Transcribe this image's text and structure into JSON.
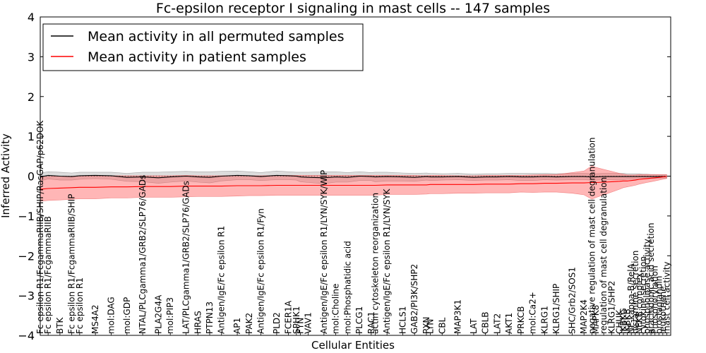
{
  "chart_data": {
    "type": "line",
    "title": "Fc-epsilon receptor I signaling in mast cells -- 147 samples",
    "xlabel": "Cellular Entities",
    "ylabel": "Inferred Activity",
    "ylim": [
      -4,
      4
    ],
    "yticks": [
      "4",
      "3",
      "2",
      "1",
      "0",
      "−1",
      "−2",
      "−3",
      "−4"
    ],
    "legend": {
      "placement": "top-left",
      "entries": [
        {
          "label": "Mean activity in all permuted samples",
          "color": "#000000"
        },
        {
          "label": "Mean activity in patient samples",
          "color": "#ff0000"
        }
      ]
    },
    "categories": [
      "Fc epsilon R1/FcgammaRIIB/SHIP/RasGAP/p62DOK",
      "Fc epsilon R1/FcgammaRIIB",
      "BTK",
      "Fc epsilon R1/FcgammaRIIB/SHIP",
      "Fc epsilon R1",
      "MS4A2",
      "mol:DAG",
      "mol:GDP",
      "NTAL/PLCgamma1/GRB2/SLP76/GADs",
      "PLA2G4A",
      "mol:PIP3",
      "LAT/PLCgamma1/GRB2/SLP76/GADs",
      "HRAS",
      "PTPN13",
      "Antigen/IgE/Fc epsilon R1",
      "AP1",
      "PAK2",
      "Antigen/IgE/Fc epsilon R1/Fyn",
      "PLD2",
      "FCER1A",
      "SPHK1",
      "FYN",
      "VAV1",
      "Antigen/IgE/Fc epsilon R1/LYN/SYK/WIP",
      "mol:Choline",
      "mol:Phosphatidic acid",
      "PLCG1",
      "RAC1",
      "actin cytoskeleton reorganization",
      "Antigen/IgE/Fc epsilon R1/LYN/SYK",
      "HCLS1",
      "GAB2/PI3K/SHP2",
      "PXN",
      "LYN",
      "CBL",
      "MAP3K1",
      "LAT",
      "CBLB",
      "LAT2",
      "AKT1",
      "PRKCB",
      "mol:Ca2+",
      "KLRG1",
      "KLRG1/SHIP",
      "SHC/Grb2/SOS1",
      "MAP2K4",
      "negative regulation of mast cell degranulation",
      "MAPK8",
      "regulation of mast cell degranulation",
      "KLRG1/SHP2",
      "CHUK",
      "IKBKG",
      "IKBKB",
      "NF-kappa-B/RelA",
      "histamine secretion",
      "NFKB complex",
      "cytokine secretion",
      "phospholipase activity",
      "arachidonic acid secretion",
      "Phosphorylation",
      "prostaglandin",
      "leukotriene",
      "mast cell activity"
    ],
    "x": [
      0,
      2,
      5,
      8,
      10,
      14,
      18,
      22,
      26,
      30,
      33,
      37,
      40,
      43,
      46,
      50,
      53,
      56,
      60,
      63,
      65,
      66,
      68,
      72,
      75,
      78,
      81,
      84,
      85,
      88,
      92,
      95,
      98,
      99,
      102,
      106,
      110,
      113,
      116,
      119,
      122,
      125,
      128,
      131,
      135,
      138,
      140,
      141,
      143,
      145,
      147,
      148,
      149,
      150,
      151,
      152,
      153,
      154,
      155,
      156,
      157,
      158,
      159
    ],
    "xrange": [
      0,
      160
    ],
    "series": [
      {
        "name": "Mean activity in all permuted samples",
        "color": "#000000",
        "values": [
          -0.02,
          0.02,
          0.0,
          -0.01,
          0.01,
          0.02,
          0.01,
          -0.03,
          -0.02,
          -0.04,
          -0.02,
          0.0,
          -0.02,
          -0.03,
          0.0,
          0.02,
          0.01,
          -0.01,
          0.02,
          0.01,
          0.0,
          -0.02,
          -0.03,
          -0.04,
          -0.02,
          -0.03,
          0.0,
          -0.01,
          -0.02,
          -0.01,
          -0.02,
          -0.03,
          -0.01,
          -0.02,
          -0.02,
          -0.01,
          -0.03,
          -0.02,
          -0.02,
          -0.01,
          -0.02,
          -0.02,
          -0.01,
          -0.02,
          -0.01,
          -0.01,
          -0.02,
          -0.02,
          -0.01,
          -0.01,
          -0.01,
          -0.01,
          -0.01,
          -0.01,
          -0.01,
          -0.01,
          -0.01,
          -0.01,
          -0.01,
          -0.01,
          -0.01,
          -0.01,
          -0.01
        ],
        "band": [
          0.1,
          0.09,
          0.1,
          0.09,
          0.09,
          0.08,
          0.09,
          0.1,
          0.12,
          0.14,
          0.13,
          0.12,
          0.13,
          0.14,
          0.12,
          0.11,
          0.1,
          0.1,
          0.11,
          0.1,
          0.1,
          0.12,
          0.13,
          0.15,
          0.13,
          0.12,
          0.11,
          0.1,
          0.12,
          0.11,
          0.1,
          0.1,
          0.09,
          0.09,
          0.08,
          0.08,
          0.08,
          0.08,
          0.08,
          0.08,
          0.09,
          0.09,
          0.08,
          0.08,
          0.08,
          0.08,
          0.08,
          0.08,
          0.08,
          0.08,
          0.08,
          0.08,
          0.07,
          0.07,
          0.07,
          0.07,
          0.06,
          0.06,
          0.05,
          0.05,
          0.04,
          0.04,
          0.04
        ]
      },
      {
        "name": "Mean activity in patient samples",
        "color": "#ff0000",
        "values": [
          -0.33,
          -0.31,
          -0.3,
          -0.29,
          -0.28,
          -0.28,
          -0.27,
          -0.27,
          -0.26,
          -0.26,
          -0.26,
          -0.25,
          -0.25,
          -0.25,
          -0.25,
          -0.24,
          -0.24,
          -0.24,
          -0.23,
          -0.23,
          -0.23,
          -0.23,
          -0.23,
          -0.23,
          -0.23,
          -0.23,
          -0.23,
          -0.23,
          -0.23,
          -0.22,
          -0.22,
          -0.22,
          -0.22,
          -0.21,
          -0.21,
          -0.21,
          -0.21,
          -0.2,
          -0.2,
          -0.2,
          -0.19,
          -0.19,
          -0.18,
          -0.18,
          -0.17,
          -0.17,
          -0.16,
          -0.16,
          -0.15,
          -0.14,
          -0.13,
          -0.12,
          -0.12,
          -0.11,
          -0.1,
          -0.08,
          -0.07,
          -0.06,
          -0.05,
          -0.04,
          -0.03,
          -0.02,
          -0.01
        ],
        "band": [
          0.3,
          0.3,
          0.3,
          0.29,
          0.29,
          0.29,
          0.28,
          0.28,
          0.27,
          0.27,
          0.27,
          0.27,
          0.26,
          0.26,
          0.26,
          0.26,
          0.25,
          0.25,
          0.25,
          0.25,
          0.25,
          0.25,
          0.25,
          0.25,
          0.25,
          0.25,
          0.25,
          0.25,
          0.25,
          0.24,
          0.24,
          0.24,
          0.23,
          0.23,
          0.23,
          0.22,
          0.22,
          0.22,
          0.22,
          0.22,
          0.21,
          0.22,
          0.22,
          0.22,
          0.26,
          0.3,
          0.42,
          0.38,
          0.32,
          0.26,
          0.2,
          0.17,
          0.15,
          0.14,
          0.13,
          0.12,
          0.11,
          0.1,
          0.09,
          0.08,
          0.07,
          0.06,
          0.05
        ]
      }
    ]
  }
}
